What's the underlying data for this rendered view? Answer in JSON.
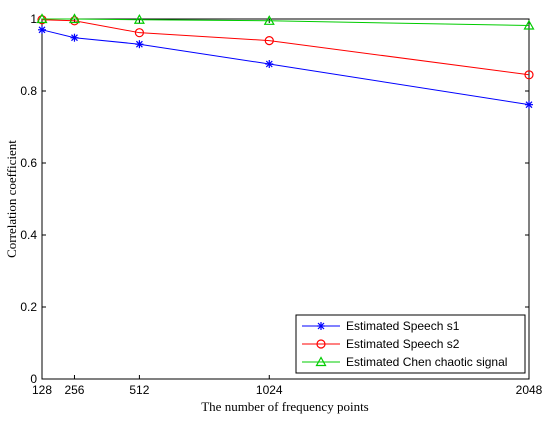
{
  "chart_data": {
    "type": "line",
    "title": "",
    "xlabel": "The number of frequency points",
    "ylabel": "Correlation coefficient",
    "x": [
      128,
      256,
      512,
      1024,
      2048
    ],
    "xticks": [
      128,
      256,
      512,
      1024,
      2048
    ],
    "xtick_labels": [
      "128",
      "256",
      "512",
      "1024",
      "2048"
    ],
    "xlim": [
      128,
      2048
    ],
    "ylim": [
      0,
      1
    ],
    "yticks": [
      0,
      0.2,
      0.4,
      0.6,
      0.8,
      1
    ],
    "ytick_labels": [
      "0",
      "0.2",
      "0.4",
      "0.6",
      "0.8",
      "1"
    ],
    "grid": false,
    "legend_position": "bottom-right",
    "series": [
      {
        "name": "Estimated Speech s1",
        "color": "#0000ff",
        "marker": "asterisk",
        "values": [
          0.97,
          0.948,
          0.93,
          0.875,
          0.762
        ]
      },
      {
        "name": "Estimated Speech s2",
        "color": "#ff0000",
        "marker": "circle",
        "values": [
          0.998,
          0.995,
          0.962,
          0.94,
          0.845
        ]
      },
      {
        "name": "Estimated Chen chaotic signal",
        "color": "#00cc00",
        "marker": "triangle",
        "values": [
          1.0,
          1.0,
          0.998,
          0.995,
          0.982
        ]
      }
    ]
  }
}
